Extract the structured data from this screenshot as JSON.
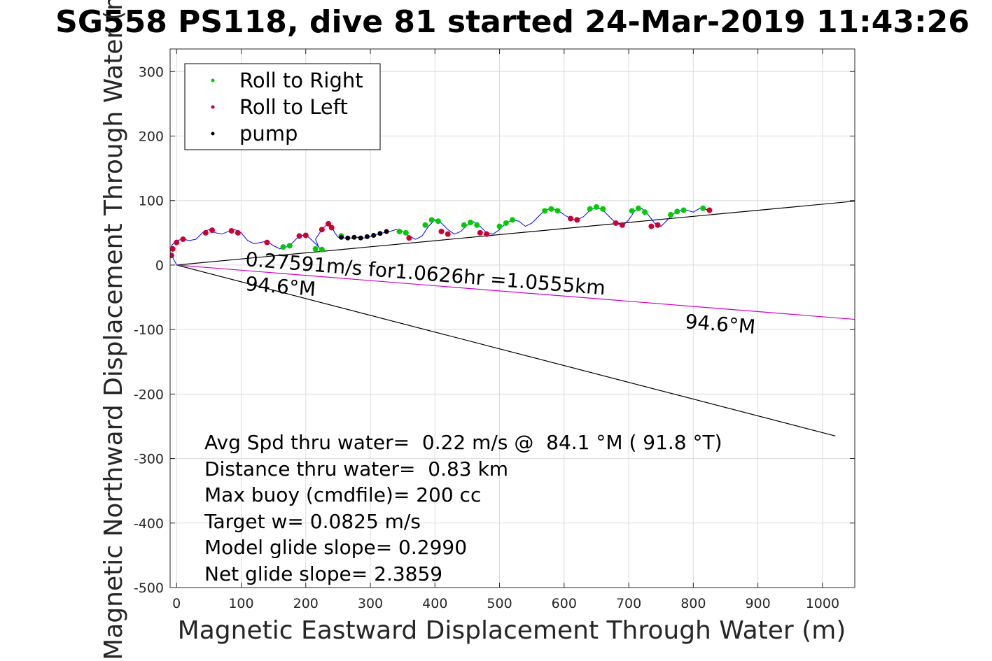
{
  "chart_data": {
    "type": "scatter",
    "title": "SG558 PS118, dive 81 started 24-Mar-2019 11:43:26",
    "xlabel": "Magnetic Eastward Displacement Through Water (m)",
    "ylabel": "Magnetic Northward Displacement Through Water (m)",
    "xlim": [
      -10,
      1050
    ],
    "ylim": [
      -500,
      335
    ],
    "xticks": [
      0,
      100,
      200,
      300,
      400,
      500,
      600,
      700,
      800,
      900,
      1000
    ],
    "yticks": [
      300,
      200,
      100,
      0,
      -100,
      -200,
      -300,
      -400,
      -500
    ],
    "grid": true,
    "legend": {
      "placement": "top-left",
      "entries": [
        {
          "label": "Roll to Right",
          "color": "#00cc00"
        },
        {
          "label": "Roll to Left",
          "color": "#cc0033"
        },
        {
          "label": "pump",
          "color": "#000000"
        }
      ]
    },
    "lines": {
      "upper": {
        "x": [
          0,
          1060
        ],
        "y": [
          0,
          100
        ],
        "color": "#000000"
      },
      "lower": {
        "x": [
          0,
          1020
        ],
        "y": [
          0,
          -265
        ],
        "color": "#000000"
      },
      "heading": {
        "x": [
          0,
          1060
        ],
        "y": [
          0,
          -85
        ],
        "color": "#cc00cc"
      }
    },
    "track": {
      "x": [
        0,
        -5,
        -10,
        -8,
        0,
        10,
        20,
        30,
        40,
        50,
        60,
        70,
        80,
        90,
        100,
        110,
        120,
        130,
        140,
        150,
        160,
        170,
        180,
        190,
        200,
        210,
        220,
        225,
        220,
        215,
        225,
        235,
        240,
        245,
        250,
        260,
        270,
        280,
        290,
        300,
        310,
        320,
        330,
        340,
        350,
        360,
        370,
        380,
        390,
        400,
        410,
        420,
        430,
        440,
        450,
        460,
        470,
        480,
        490,
        500,
        510,
        520,
        530,
        540,
        550,
        560,
        570,
        580,
        590,
        600,
        610,
        620,
        630,
        640,
        650,
        660,
        670,
        680,
        690,
        700,
        710,
        720,
        730,
        740,
        750,
        760,
        770,
        780,
        790,
        800,
        810,
        820,
        825
      ],
      "y": [
        0,
        10,
        20,
        30,
        38,
        40,
        38,
        40,
        50,
        55,
        50,
        48,
        52,
        55,
        50,
        38,
        33,
        35,
        37,
        30,
        25,
        28,
        35,
        45,
        47,
        38,
        28,
        22,
        28,
        40,
        55,
        65,
        60,
        50,
        43,
        42,
        42,
        43,
        42,
        44,
        47,
        50,
        52,
        55,
        52,
        45,
        40,
        45,
        60,
        70,
        65,
        55,
        48,
        52,
        62,
        67,
        60,
        50,
        48,
        55,
        65,
        70,
        68,
        60,
        65,
        75,
        85,
        88,
        85,
        78,
        72,
        70,
        75,
        85,
        90,
        85,
        75,
        65,
        60,
        70,
        85,
        88,
        78,
        65,
        60,
        70,
        80,
        85,
        85,
        82,
        88,
        86,
        85
      ]
    },
    "roll_right": [
      {
        "x": 345,
        "y": 52
      },
      {
        "x": 355,
        "y": 50
      },
      {
        "x": 385,
        "y": 62
      },
      {
        "x": 395,
        "y": 70
      },
      {
        "x": 405,
        "y": 68
      },
      {
        "x": 445,
        "y": 62
      },
      {
        "x": 455,
        "y": 66
      },
      {
        "x": 465,
        "y": 62
      },
      {
        "x": 500,
        "y": 60
      },
      {
        "x": 510,
        "y": 65
      },
      {
        "x": 520,
        "y": 70
      },
      {
        "x": 570,
        "y": 84
      },
      {
        "x": 580,
        "y": 87
      },
      {
        "x": 590,
        "y": 84
      },
      {
        "x": 640,
        "y": 87
      },
      {
        "x": 650,
        "y": 90
      },
      {
        "x": 660,
        "y": 87
      },
      {
        "x": 705,
        "y": 84
      },
      {
        "x": 715,
        "y": 88
      },
      {
        "x": 725,
        "y": 82
      },
      {
        "x": 765,
        "y": 78
      },
      {
        "x": 775,
        "y": 83
      },
      {
        "x": 785,
        "y": 85
      },
      {
        "x": 815,
        "y": 88
      },
      {
        "x": 165,
        "y": 28
      },
      {
        "x": 175,
        "y": 30
      },
      {
        "x": 215,
        "y": 25
      },
      {
        "x": 225,
        "y": 24
      },
      {
        "x": 255,
        "y": 45
      }
    ],
    "roll_left": [
      {
        "x": -8,
        "y": 15
      },
      {
        "x": -6,
        "y": 25
      },
      {
        "x": 0,
        "y": 35
      },
      {
        "x": 10,
        "y": 40
      },
      {
        "x": 45,
        "y": 50
      },
      {
        "x": 55,
        "y": 54
      },
      {
        "x": 85,
        "y": 53
      },
      {
        "x": 95,
        "y": 50
      },
      {
        "x": 140,
        "y": 35
      },
      {
        "x": 190,
        "y": 45
      },
      {
        "x": 200,
        "y": 46
      },
      {
        "x": 225,
        "y": 55
      },
      {
        "x": 235,
        "y": 64
      },
      {
        "x": 240,
        "y": 58
      },
      {
        "x": 360,
        "y": 42
      },
      {
        "x": 410,
        "y": 52
      },
      {
        "x": 420,
        "y": 48
      },
      {
        "x": 470,
        "y": 50
      },
      {
        "x": 480,
        "y": 48
      },
      {
        "x": 610,
        "y": 72
      },
      {
        "x": 620,
        "y": 70
      },
      {
        "x": 680,
        "y": 65
      },
      {
        "x": 690,
        "y": 62
      },
      {
        "x": 735,
        "y": 60
      },
      {
        "x": 745,
        "y": 62
      },
      {
        "x": 825,
        "y": 85
      }
    ],
    "pump": [
      {
        "x": 255,
        "y": 43
      },
      {
        "x": 265,
        "y": 42
      },
      {
        "x": 275,
        "y": 43
      },
      {
        "x": 285,
        "y": 42
      },
      {
        "x": 295,
        "y": 44
      },
      {
        "x": 305,
        "y": 46
      },
      {
        "x": 315,
        "y": 49
      },
      {
        "x": 325,
        "y": 52
      }
    ],
    "annotations": {
      "speed_line": "0.27591m/s for1.0626hr =1.0555km",
      "heading_left": "94.6°M",
      "heading_right": "94.6°M"
    },
    "stats": [
      "Avg Spd thru water=  0.22 m/s @  84.1 °M ( 91.8 °T)",
      "Distance thru water=  0.83 km",
      "Max buoy (cmdfile)= 200 cc",
      "Target w= 0.0825 m/s",
      "Model glide slope= 0.2990",
      "Net glide slope= 2.3859"
    ]
  }
}
